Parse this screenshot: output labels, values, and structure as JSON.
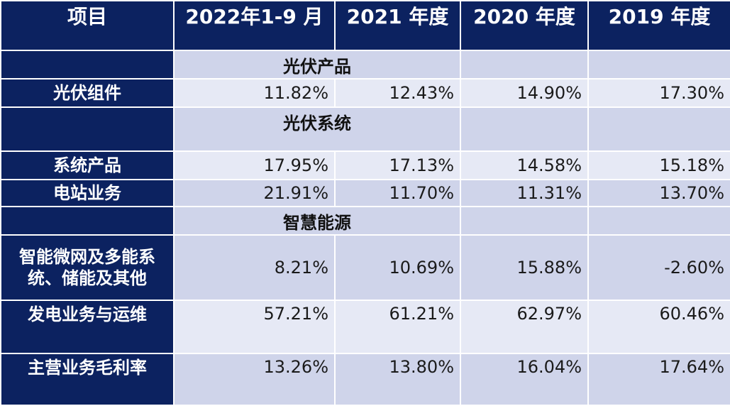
{
  "header": {
    "col0": "项目",
    "col1": "2022年1-9 月",
    "col2": "2021 年度",
    "col3": "2020 年度",
    "col4": "2019 年度"
  },
  "sections": {
    "pv_products": "光伏产品",
    "pv_systems": "光伏系统",
    "smart_energy": "智慧能源"
  },
  "rows": {
    "pv_modules": {
      "label": "光伏组件",
      "v2022": "11.82%",
      "v2021": "12.43%",
      "v2020": "14.90%",
      "v2019": "17.30%"
    },
    "system_products": {
      "label": "系统产品",
      "v2022": "17.95%",
      "v2021": "17.13%",
      "v2020": "14.58%",
      "v2019": "15.18%"
    },
    "power_station": {
      "label": "电站业务",
      "v2022": "21.91%",
      "v2021": "11.70%",
      "v2020": "11.31%",
      "v2019": "13.70%"
    },
    "microgrid": {
      "label_line1": "智能微网及多能系",
      "label_line2": "统、储能及其他",
      "v2022": "8.21%",
      "v2021": "10.69%",
      "v2020": "15.88%",
      "v2019": "-2.60%"
    },
    "generation_om": {
      "label": "发电业务与运维",
      "v2022": "57.21%",
      "v2021": "61.21%",
      "v2020": "62.97%",
      "v2019": "60.46%"
    },
    "main_margin": {
      "label": "主营业务毛利率",
      "v2022": "13.26%",
      "v2021": "13.80%",
      "v2020": "16.04%",
      "v2019": "17.64%"
    }
  }
}
